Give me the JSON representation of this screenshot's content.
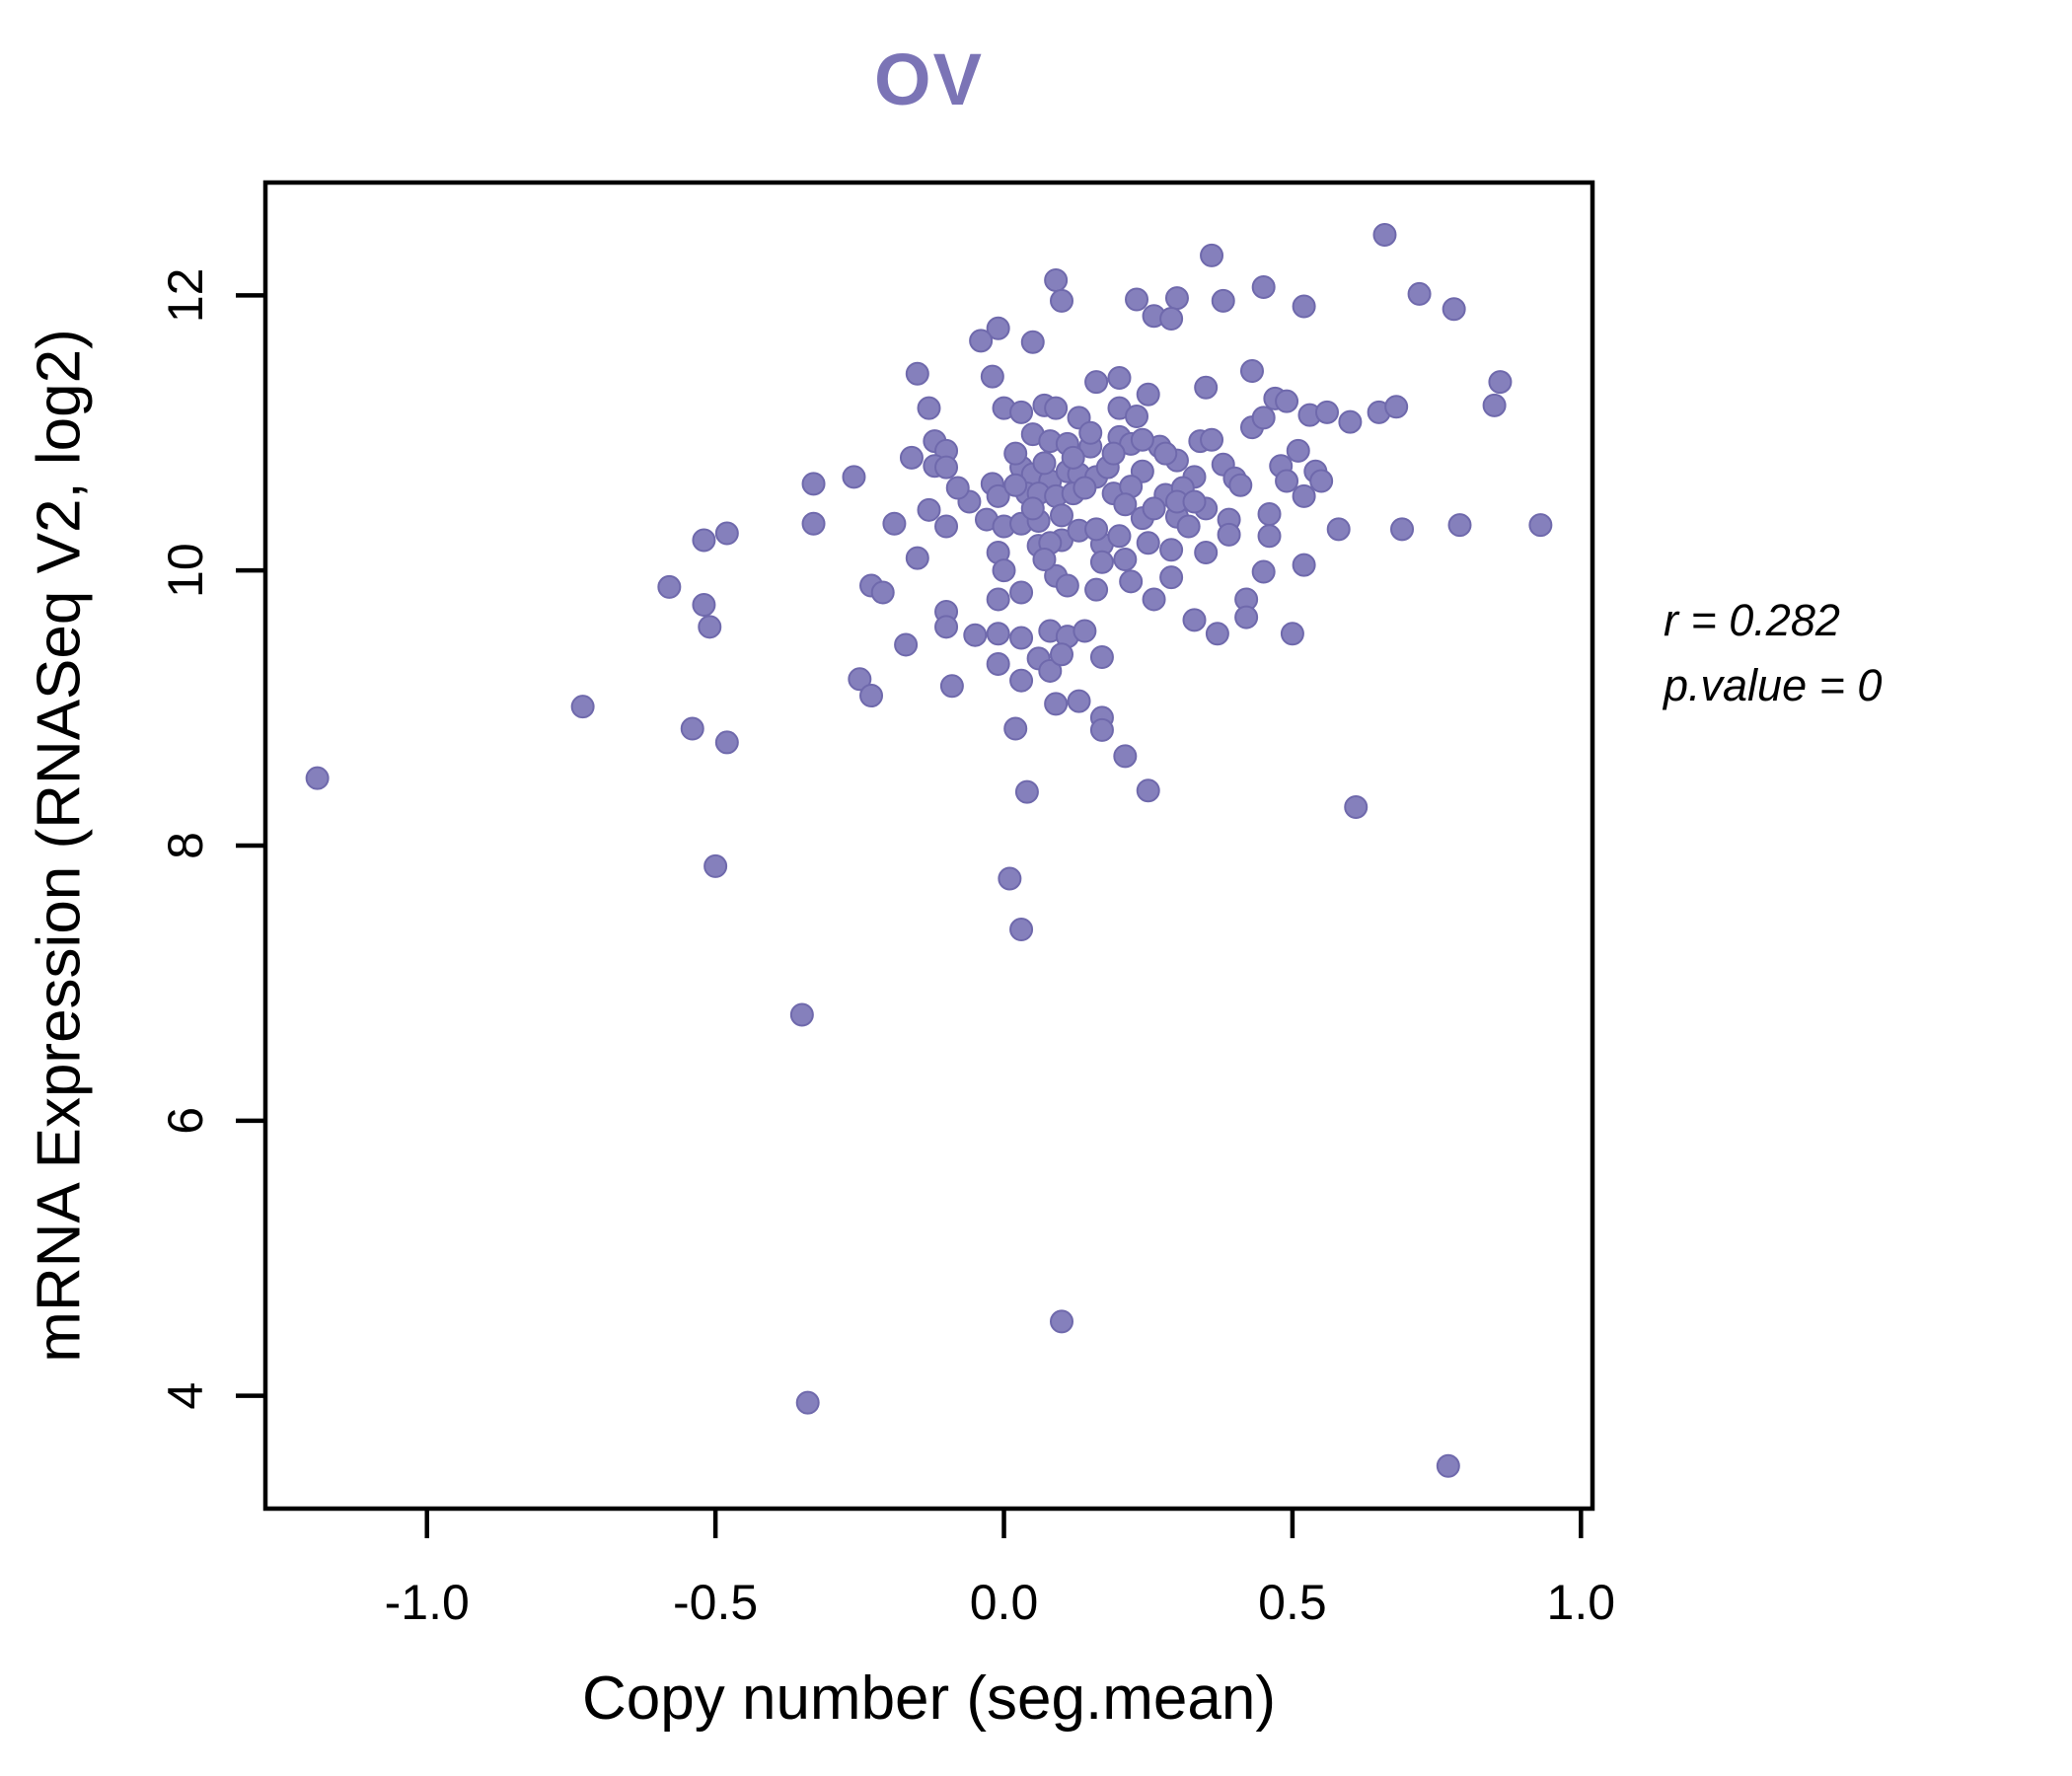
{
  "title": {
    "text": "OV",
    "color": "#7B74B6"
  },
  "annotation": {
    "line1": "r = 0.282",
    "line2": "p.value = 0"
  },
  "chart_data": {
    "type": "scatter",
    "title": "OV",
    "xlabel": "Copy number (seg.mean)",
    "ylabel": "mRNA Expression (RNASeq V2, log2)",
    "xlim": [
      -1.28,
      1.02
    ],
    "ylim": [
      3.18,
      12.82
    ],
    "x_ticks": [
      -1.0,
      -0.5,
      0.0,
      0.5,
      1.0
    ],
    "x_tick_labels": [
      "-1.0",
      "-0.5",
      "0.0",
      "0.5",
      "1.0"
    ],
    "y_ticks": [
      4,
      6,
      8,
      10,
      12
    ],
    "y_tick_labels": [
      "4",
      "6",
      "8",
      "10",
      "12"
    ],
    "grid": false,
    "legend": "none",
    "point_color": "#8580BC",
    "point_edge_color": "#6F69AC",
    "axis_color": "#000000",
    "correlation_r": 0.282,
    "p_value": 0,
    "points": [
      [
        0.09,
        12.11
      ],
      [
        0.1,
        11.96
      ],
      [
        0.23,
        11.97
      ],
      [
        0.26,
        11.85
      ],
      [
        -0.01,
        11.76
      ],
      [
        -0.04,
        11.67
      ],
      [
        0.05,
        11.66
      ],
      [
        -0.15,
        11.43
      ],
      [
        -0.02,
        11.41
      ],
      [
        0.16,
        11.37
      ],
      [
        0.2,
        11.4
      ],
      [
        0.25,
        11.28
      ],
      [
        -0.13,
        11.18
      ],
      [
        0.0,
        11.18
      ],
      [
        0.03,
        11.15
      ],
      [
        0.07,
        11.2
      ],
      [
        0.09,
        11.18
      ],
      [
        0.13,
        11.11
      ],
      [
        0.2,
        11.18
      ],
      [
        0.23,
        11.12
      ],
      [
        -0.12,
        10.94
      ],
      [
        -0.1,
        10.87
      ],
      [
        -0.16,
        10.82
      ],
      [
        -0.12,
        10.76
      ],
      [
        -0.1,
        10.75
      ],
      [
        0.05,
        10.99
      ],
      [
        0.08,
        10.94
      ],
      [
        0.11,
        10.92
      ],
      [
        0.15,
        10.9
      ],
      [
        0.2,
        10.97
      ],
      [
        0.22,
        10.92
      ],
      [
        0.03,
        10.75
      ],
      [
        0.05,
        10.7
      ],
      [
        0.08,
        10.65
      ],
      [
        0.11,
        10.72
      ],
      [
        0.13,
        10.7
      ],
      [
        0.16,
        10.68
      ],
      [
        0.24,
        10.72
      ],
      [
        -0.33,
        10.63
      ],
      [
        -0.26,
        10.68
      ],
      [
        -0.02,
        10.63
      ],
      [
        -0.01,
        10.54
      ],
      [
        0.04,
        10.56
      ],
      [
        0.06,
        10.56
      ],
      [
        0.09,
        10.54
      ],
      [
        0.12,
        10.56
      ],
      [
        0.19,
        10.56
      ],
      [
        0.22,
        10.61
      ],
      [
        -0.33,
        10.34
      ],
      [
        -0.19,
        10.34
      ],
      [
        -0.13,
        10.44
      ],
      [
        -0.1,
        10.32
      ],
      [
        -0.03,
        10.37
      ],
      [
        0.0,
        10.32
      ],
      [
        0.03,
        10.34
      ],
      [
        0.06,
        10.36
      ],
      [
        0.1,
        10.22
      ],
      [
        0.13,
        10.29
      ],
      [
        0.17,
        10.19
      ],
      [
        0.2,
        10.25
      ],
      [
        -0.52,
        10.22
      ],
      [
        -0.48,
        10.27
      ],
      [
        -0.15,
        10.09
      ],
      [
        -0.01,
        10.13
      ],
      [
        0.06,
        10.18
      ],
      [
        0.08,
        10.2
      ],
      [
        0.17,
        10.06
      ],
      [
        0.21,
        10.08
      ],
      [
        -0.23,
        9.89
      ],
      [
        -0.21,
        9.84
      ],
      [
        -0.52,
        9.75
      ],
      [
        -0.1,
        9.7
      ],
      [
        -0.01,
        9.79
      ],
      [
        0.03,
        9.84
      ],
      [
        0.09,
        9.96
      ],
      [
        0.11,
        9.89
      ],
      [
        0.16,
        9.86
      ],
      [
        -0.58,
        9.88
      ],
      [
        -0.51,
        9.59
      ],
      [
        0.66,
        12.44
      ],
      [
        0.36,
        12.29
      ],
      [
        0.45,
        12.06
      ],
      [
        0.3,
        11.98
      ],
      [
        0.29,
        11.83
      ],
      [
        0.38,
        11.96
      ],
      [
        0.52,
        11.92
      ],
      [
        0.72,
        12.01
      ],
      [
        0.78,
        11.9
      ],
      [
        0.43,
        11.45
      ],
      [
        0.35,
        11.33
      ],
      [
        0.86,
        11.37
      ],
      [
        0.85,
        11.2
      ],
      [
        0.47,
        11.25
      ],
      [
        0.49,
        11.23
      ],
      [
        0.53,
        11.13
      ],
      [
        0.56,
        11.15
      ],
      [
        0.6,
        11.08
      ],
      [
        0.65,
        11.15
      ],
      [
        0.68,
        11.19
      ],
      [
        0.43,
        11.04
      ],
      [
        0.45,
        11.11
      ],
      [
        0.34,
        10.94
      ],
      [
        0.36,
        10.95
      ],
      [
        0.27,
        10.9
      ],
      [
        0.3,
        10.8
      ],
      [
        0.33,
        10.68
      ],
      [
        0.38,
        10.77
      ],
      [
        0.4,
        10.67
      ],
      [
        0.41,
        10.62
      ],
      [
        0.51,
        10.87
      ],
      [
        0.48,
        10.76
      ],
      [
        0.49,
        10.65
      ],
      [
        0.54,
        10.72
      ],
      [
        0.55,
        10.65
      ],
      [
        0.52,
        10.54
      ],
      [
        0.3,
        10.39
      ],
      [
        0.32,
        10.32
      ],
      [
        0.39,
        10.37
      ],
      [
        0.39,
        10.26
      ],
      [
        0.46,
        10.41
      ],
      [
        0.46,
        10.25
      ],
      [
        0.58,
        10.3
      ],
      [
        0.69,
        10.3
      ],
      [
        0.79,
        10.33
      ],
      [
        0.93,
        10.33
      ],
      [
        0.35,
        10.13
      ],
      [
        0.45,
        9.99
      ],
      [
        0.52,
        10.04
      ],
      [
        0.29,
        9.95
      ],
      [
        0.26,
        9.79
      ],
      [
        0.42,
        9.79
      ],
      [
        0.33,
        9.64
      ],
      [
        0.42,
        9.66
      ],
      [
        -0.17,
        9.46
      ],
      [
        -0.1,
        9.59
      ],
      [
        -0.05,
        9.53
      ],
      [
        -0.01,
        9.54
      ],
      [
        0.03,
        9.51
      ],
      [
        0.08,
        9.56
      ],
      [
        0.11,
        9.52
      ],
      [
        0.14,
        9.56
      ],
      [
        -0.01,
        9.32
      ],
      [
        0.03,
        9.2
      ],
      [
        0.06,
        9.36
      ],
      [
        0.08,
        9.27
      ],
      [
        0.1,
        9.39
      ],
      [
        0.17,
        9.37
      ],
      [
        -0.25,
        9.21
      ],
      [
        -0.23,
        9.09
      ],
      [
        -0.09,
        9.16
      ],
      [
        0.09,
        9.03
      ],
      [
        0.13,
        9.05
      ],
      [
        0.17,
        8.93
      ],
      [
        0.17,
        8.84
      ],
      [
        0.02,
        8.85
      ],
      [
        -0.48,
        8.75
      ],
      [
        0.21,
        8.65
      ],
      [
        0.04,
        8.39
      ],
      [
        -0.5,
        7.85
      ],
      [
        0.01,
        7.76
      ],
      [
        0.03,
        7.39
      ],
      [
        -0.35,
        6.77
      ],
      [
        0.37,
        9.54
      ],
      [
        0.5,
        9.54
      ],
      [
        0.61,
        8.28
      ],
      [
        0.25,
        8.4
      ],
      [
        -0.73,
        9.01
      ],
      [
        -0.54,
        8.85
      ],
      [
        -1.19,
        8.49
      ],
      [
        -0.34,
        3.95
      ],
      [
        0.1,
        4.54
      ],
      [
        0.77,
        3.49
      ],
      [
        0.02,
        10.85
      ],
      [
        0.07,
        10.78
      ],
      [
        0.12,
        10.82
      ],
      [
        0.18,
        10.75
      ],
      [
        0.14,
        10.6
      ],
      [
        0.21,
        10.48
      ],
      [
        0.05,
        10.45
      ],
      [
        0.16,
        10.3
      ],
      [
        0.24,
        10.38
      ],
      [
        0.28,
        10.55
      ],
      [
        0.31,
        10.6
      ],
      [
        0.26,
        10.45
      ],
      [
        0.1,
        10.4
      ],
      [
        -0.06,
        10.5
      ],
      [
        -0.08,
        10.6
      ],
      [
        0.02,
        10.62
      ],
      [
        0.25,
        10.2
      ],
      [
        0.29,
        10.15
      ],
      [
        0.35,
        10.45
      ],
      [
        0.07,
        10.08
      ],
      [
        0.0,
        10.0
      ],
      [
        0.22,
        9.92
      ],
      [
        0.3,
        10.5
      ],
      [
        0.15,
        11.0
      ],
      [
        0.19,
        10.85
      ],
      [
        0.24,
        10.95
      ],
      [
        0.33,
        10.5
      ],
      [
        0.28,
        10.85
      ]
    ]
  }
}
